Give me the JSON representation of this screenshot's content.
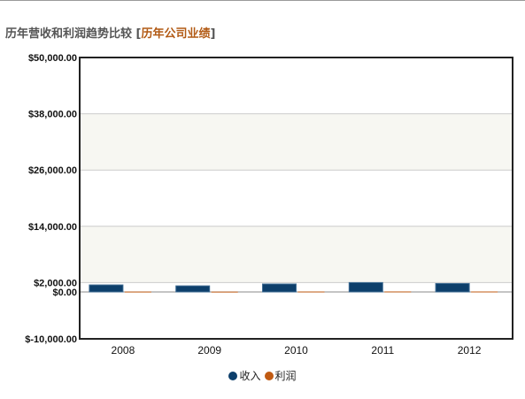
{
  "header": {
    "title": "历年营收和利润趋势比较",
    "bracket_open": "[",
    "link_label": "历年公司业绩",
    "bracket_close": "]"
  },
  "colors": {
    "revenue": "#0d3f6b",
    "profit": "#c05a12",
    "band": "#f7f7f2",
    "title_link": "#b25a14"
  },
  "chart_data": {
    "type": "bar",
    "title": "",
    "xlabel": "",
    "ylabel": "",
    "categories": [
      "2008",
      "2009",
      "2010",
      "2011",
      "2012"
    ],
    "series": [
      {
        "name": "收入",
        "values": [
          1500,
          1300,
          1700,
          2000,
          1800
        ]
      },
      {
        "name": "利润",
        "values": [
          80,
          70,
          90,
          100,
          95
        ]
      }
    ],
    "ylim": [
      -10000,
      50000
    ],
    "yticks": [
      {
        "value": 50000,
        "label": "$50,000.00"
      },
      {
        "value": 38000,
        "label": "$38,000.00"
      },
      {
        "value": 26000,
        "label": "$26,000.00"
      },
      {
        "value": 14000,
        "label": "$14,000.00"
      },
      {
        "value": 2000,
        "label": "$2,000.00"
      },
      {
        "value": 0,
        "label": "$0.00"
      },
      {
        "value": -10000,
        "label": "$-10,000.00"
      }
    ],
    "grid": true,
    "legend": "bottom-center"
  }
}
